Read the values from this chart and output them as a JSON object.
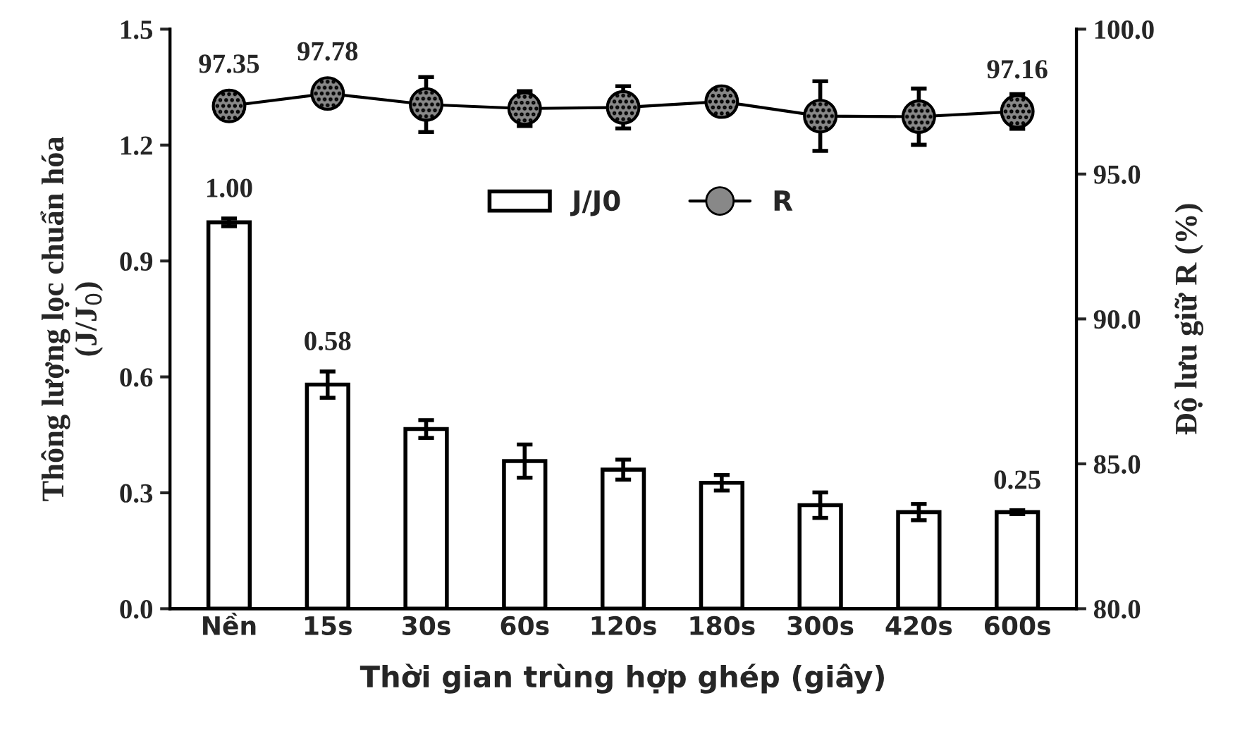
{
  "chart_data": {
    "type": "bar",
    "xlabel": "Thời gian trùng hợp ghép (giây)",
    "ylabel": "Thông lượng lọc chuẩn hóa\n(J/J$_{0}$)",
    "y2label": "Độ lưu giữ R (%)",
    "categories": [
      "Nền",
      "15s",
      "30s",
      "60s",
      "120s",
      "180s",
      "300s",
      "420s",
      "600s"
    ],
    "series": [
      {
        "name": "J/J0",
        "color": "#ffffff",
        "values": [
          1.0,
          0.58,
          0.465,
          0.382,
          0.36,
          0.326,
          0.268,
          0.25,
          0.25
        ],
        "errors": [
          0.01,
          0.034,
          0.023,
          0.043,
          0.026,
          0.02,
          0.033,
          0.021,
          0.005
        ],
        "value_labels": [
          "1.00",
          "0.58",
          null,
          null,
          null,
          null,
          null,
          null,
          "0.25"
        ]
      },
      {
        "name": "R",
        "type": "line",
        "axis": "y2",
        "color": "#000000",
        "values": [
          97.35,
          97.78,
          97.4,
          97.26,
          97.3,
          97.5,
          97.0,
          96.98,
          97.16
        ],
        "errors": [
          0.1,
          0.1,
          0.95,
          0.6,
          0.73,
          0.2,
          1.2,
          0.97,
          0.6
        ],
        "value_labels": [
          "97.35",
          "97.78",
          null,
          null,
          null,
          null,
          null,
          null,
          "97.16"
        ]
      }
    ],
    "ylim": [
      0,
      1.5
    ],
    "yticks": [
      {
        "value": 0,
        "label": "0.0"
      },
      {
        "value": 0.3,
        "label": "0.3"
      },
      {
        "value": 0.6,
        "label": "0.6"
      },
      {
        "value": 0.9,
        "label": "0.9"
      },
      {
        "value": 1.2,
        "label": "1.2"
      },
      {
        "value": 1.5,
        "label": "1.5"
      }
    ],
    "y2lim": [
      80,
      100
    ],
    "y2ticks": [
      {
        "value": 80,
        "label": "80.0"
      },
      {
        "value": 85,
        "label": "85.0"
      },
      {
        "value": 90,
        "label": "90.0"
      },
      {
        "value": 95,
        "label": "95.0"
      },
      {
        "value": 100,
        "label": "100.0"
      }
    ],
    "marker": "circle",
    "line_style": "solid",
    "grid": false,
    "legend": "top"
  }
}
